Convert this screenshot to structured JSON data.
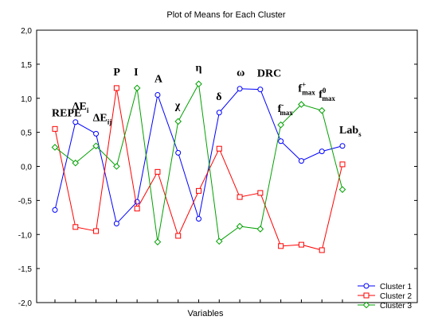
{
  "chart_data": {
    "type": "line",
    "title": "Plot of Means for Each Cluster",
    "xlabel": "Variables",
    "ylabel": "",
    "ylim": [
      -2.0,
      2.0
    ],
    "yticks": [
      "2,0",
      "1,5",
      "1,0",
      "0,5",
      "0,0",
      "-0,5",
      "-1,0",
      "-1,5",
      "-2,0"
    ],
    "ytick_values": [
      2.0,
      1.5,
      1.0,
      0.5,
      0.0,
      -0.5,
      -1.0,
      -1.5,
      -2.0
    ],
    "grid": false,
    "legend_position": "bottom-right",
    "categories": [
      {
        "main": "REPE",
        "sub": "",
        "sup": ""
      },
      {
        "main": "ΔE",
        "sub": "i",
        "sup": ""
      },
      {
        "main": "ΔE",
        "sub": "ij",
        "sup": ""
      },
      {
        "main": "P",
        "sub": "",
        "sup": ""
      },
      {
        "main": "I",
        "sub": "",
        "sup": ""
      },
      {
        "main": "A",
        "sub": "",
        "sup": ""
      },
      {
        "main": "χ",
        "sub": "",
        "sup": ""
      },
      {
        "main": "η",
        "sub": "",
        "sup": ""
      },
      {
        "main": "δ",
        "sub": "",
        "sup": ""
      },
      {
        "main": "ω",
        "sub": "",
        "sup": ""
      },
      {
        "main": "DRC",
        "sub": "",
        "sup": ""
      },
      {
        "main": "f",
        "sub": "max",
        "sup": "-"
      },
      {
        "main": "f",
        "sub": "max",
        "sup": "+"
      },
      {
        "main": "f",
        "sub": "max",
        "sup": "0"
      },
      {
        "main": "Lab",
        "sub": "s",
        "sup": ""
      }
    ],
    "series": [
      {
        "name": "Cluster 1",
        "color": "#0000ff",
        "marker": "circle",
        "values": [
          -0.64,
          0.65,
          0.48,
          -0.84,
          -0.52,
          1.05,
          0.2,
          -0.77,
          0.79,
          1.14,
          1.13,
          0.37,
          0.08,
          0.22,
          0.3
        ]
      },
      {
        "name": "Cluster 2",
        "color": "#ff0000",
        "marker": "square",
        "values": [
          0.55,
          -0.89,
          -0.95,
          1.15,
          -0.62,
          -0.08,
          -1.02,
          -0.36,
          0.26,
          -0.45,
          -0.39,
          -1.17,
          -1.15,
          -1.23,
          0.03
        ]
      },
      {
        "name": "Cluster 3",
        "color": "#00a000",
        "marker": "diamond",
        "values": [
          0.28,
          0.05,
          0.3,
          0.0,
          1.15,
          -1.11,
          0.66,
          1.21,
          -1.1,
          -0.88,
          -0.92,
          0.61,
          0.91,
          0.82,
          -0.34
        ]
      }
    ]
  }
}
